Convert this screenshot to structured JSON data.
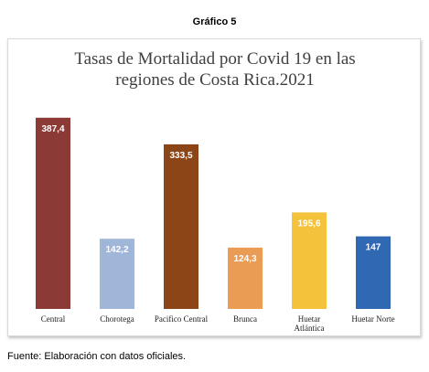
{
  "caption": "Gráfico 5",
  "footer": "Fuente: Elaboración con datos oficiales.",
  "chart_data": {
    "type": "bar",
    "title_lines": [
      "Tasas de Mortalidad por Covid 19 en las",
      "regiones de Costa Rica.2021"
    ],
    "categories": [
      [
        "Central"
      ],
      [
        "Chorotega"
      ],
      [
        "Pacifico Central"
      ],
      [
        "Brunca"
      ],
      [
        "Huetar",
        "Atlántica"
      ],
      [
        "Huetar Norte"
      ]
    ],
    "values": [
      387.4,
      142.2,
      333.5,
      124.3,
      195.6,
      147
    ],
    "value_labels": [
      "387,4",
      "142,2",
      "333,5",
      "124,3",
      "195,6",
      "147"
    ],
    "colors": [
      "#8b3a36",
      "#9fb6d9",
      "#8b4516",
      "#ea9b54",
      "#f4c23b",
      "#3068b4"
    ],
    "label_colors": [
      "#ffffff",
      "#ffffff",
      "#ffffff",
      "#ffffff",
      "#ffffff",
      "#ffffff"
    ],
    "xlabel": "",
    "ylabel": "",
    "ylim": [
      0,
      400
    ],
    "grid": false,
    "legend": "none"
  }
}
